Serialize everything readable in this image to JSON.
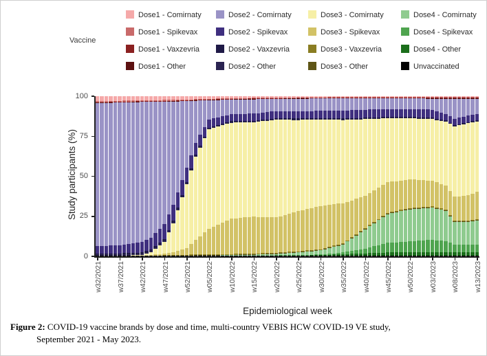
{
  "legend": {
    "title": "Vaccine",
    "columns": [
      {
        "items": [
          {
            "label": "Dose1 - Comirnaty",
            "color": "#F5A9A9"
          },
          {
            "label": "Dose1 - Spikevax",
            "color": "#C96A6A"
          },
          {
            "label": "Dose1 - Vaxzevria",
            "color": "#8B2121"
          },
          {
            "label": "Dose1 - Other",
            "color": "#5C1010"
          }
        ]
      },
      {
        "items": [
          {
            "label": "Dose2 - Comirnaty",
            "color": "#9A93C6"
          },
          {
            "label": "Dose2 - Spikevax",
            "color": "#3F2F7F"
          },
          {
            "label": "Dose2 - Vaxzevria",
            "color": "#1F1A47"
          },
          {
            "label": "Dose2 - Other",
            "color": "#2A2351"
          }
        ]
      },
      {
        "items": [
          {
            "label": "Dose3 - Comirnaty",
            "color": "#F6EFA6"
          },
          {
            "label": "Dose3 - Spikevax",
            "color": "#D2C266"
          },
          {
            "label": "Dose3 - Vaxzevria",
            "color": "#8A7D22"
          },
          {
            "label": "Dose3 - Other",
            "color": "#5E5516"
          }
        ]
      },
      {
        "items": [
          {
            "label": "Dose4 - Comirnaty",
            "color": "#8FCB8F"
          },
          {
            "label": "Dose4 - Spikevax",
            "color": "#4FA44F"
          },
          {
            "label": "Dose4 - Other",
            "color": "#1B6E1B"
          },
          {
            "label": "Unvaccinated",
            "color": "#000000"
          }
        ]
      }
    ]
  },
  "chart_data": {
    "type": "bar",
    "stacked": true,
    "orientation": "vertical",
    "title": "",
    "xlabel": "Epidemiological week",
    "ylabel": "Study participants (%)",
    "ylim": [
      0,
      100
    ],
    "y_ticks": [
      0,
      25,
      50,
      75,
      100
    ],
    "grid": false,
    "legend_position": "top",
    "n_bars": 86,
    "x_tick_labels": [
      "w32/2021",
      "w37/2021",
      "w42/2021",
      "w47/2021",
      "w52/2021",
      "w05/2022",
      "w10/2022",
      "w15/2022",
      "w20/2022",
      "w25/2022",
      "w30/2022",
      "w35/2022",
      "w40/2022",
      "w45/2022",
      "w50/2022",
      "w03/2023",
      "w08/2023",
      "w13/2023"
    ],
    "x_tick_bar_indices": [
      0,
      5,
      10,
      15,
      20,
      25,
      30,
      35,
      40,
      45,
      50,
      55,
      60,
      65,
      70,
      75,
      80,
      85
    ],
    "anchor_bar_indices": [
      0,
      5,
      10,
      12,
      15,
      17,
      20,
      22,
      25,
      30,
      35,
      40,
      45,
      50,
      55,
      60,
      65,
      70,
      75,
      78,
      80,
      83,
      85
    ],
    "stack_order_note": "series listed bottom-to-top; values are % of study participants at anchor weeks",
    "series": [
      {
        "name": "Unvaccinated",
        "color": "#000000",
        "values": [
          0.4,
          0.4,
          0.4,
          0.4,
          0.4,
          0.4,
          0.4,
          0.4,
          0.4,
          0.4,
          0.4,
          0.4,
          0.4,
          0.4,
          0.4,
          0.4,
          0.4,
          0.4,
          0.4,
          0.4,
          0.4,
          0.4,
          0.4
        ]
      },
      {
        "name": "Dose4 - Other",
        "color": "#1B6E1B",
        "values": [
          0,
          0,
          0,
          0,
          0,
          0,
          0,
          0,
          0,
          0,
          0,
          0.1,
          0.2,
          0.3,
          1,
          1.5,
          2,
          2,
          2,
          2,
          2,
          2,
          2
        ]
      },
      {
        "name": "Dose4 - Spikevax",
        "color": "#4FA44F",
        "values": [
          0,
          0,
          0,
          0,
          0,
          0,
          0,
          0,
          0,
          0,
          0.1,
          0.2,
          0.3,
          0.5,
          1,
          3,
          6,
          7,
          8,
          7,
          5,
          5,
          5
        ]
      },
      {
        "name": "Dose4 - Comirnaty",
        "color": "#8FCB8F",
        "values": [
          0,
          0,
          0,
          0,
          0,
          0,
          0,
          0.1,
          0.2,
          0.3,
          0.5,
          0.8,
          1.5,
          2.5,
          5,
          12,
          18,
          20,
          20,
          19,
          14,
          14,
          15
        ]
      },
      {
        "name": "Dose3 - Other",
        "color": "#5E5516",
        "values": [
          0,
          0,
          0,
          0,
          0.1,
          0.1,
          0.2,
          0.2,
          0.3,
          0.3,
          0.3,
          0.3,
          0.3,
          0.3,
          0.3,
          0.3,
          0.3,
          0.3,
          0.3,
          0.3,
          0.3,
          0.3,
          0.3
        ]
      },
      {
        "name": "Dose3 - Vaxzevria",
        "color": "#8A7D22",
        "values": [
          0,
          0,
          0,
          0.1,
          0.2,
          0.3,
          0.4,
          0.5,
          0.5,
          0.5,
          0.5,
          0.5,
          0.5,
          0.5,
          0.5,
          0.5,
          0.5,
          0.5,
          0.5,
          0.5,
          0.5,
          0.5,
          0.5
        ]
      },
      {
        "name": "Dose3 - Spikevax",
        "color": "#D2C266",
        "values": [
          0,
          0,
          0,
          0.3,
          1,
          2,
          4,
          9,
          16,
          22,
          23,
          22,
          25,
          27,
          25,
          20,
          19,
          18,
          16,
          15,
          15,
          16,
          17
        ]
      },
      {
        "name": "Dose3 - Comirnaty",
        "color": "#F6EFA6",
        "values": [
          0,
          0,
          0.5,
          2,
          7.5,
          18,
          40,
          52,
          62,
          60,
          59,
          61,
          57,
          54,
          52,
          48,
          40,
          38,
          38.5,
          40,
          44,
          45,
          44
        ]
      },
      {
        "name": "Dose2 - Other",
        "color": "#2A2351",
        "values": [
          0.7,
          0.7,
          0.7,
          0.7,
          0.7,
          0.7,
          0.6,
          0.6,
          0.5,
          0.4,
          0.4,
          0.4,
          0.4,
          0.4,
          0.4,
          0.4,
          0.4,
          0.4,
          0.4,
          0.3,
          0.3,
          0.3,
          0.3
        ]
      },
      {
        "name": "Dose2 - Vaxzevria",
        "color": "#1F1A47",
        "values": [
          0.8,
          0.8,
          0.8,
          0.8,
          0.8,
          0.8,
          0.7,
          0.7,
          0.6,
          0.5,
          0.5,
          0.5,
          0.5,
          0.5,
          0.5,
          0.5,
          0.5,
          0.5,
          0.5,
          0.4,
          0.4,
          0.4,
          0.4
        ]
      },
      {
        "name": "Dose2 - Spikevax",
        "color": "#3F2F7F",
        "values": [
          4.5,
          5,
          6.5,
          7.5,
          9.5,
          10,
          9,
          7.5,
          5,
          4.5,
          4.5,
          4.5,
          4.5,
          4.5,
          5,
          5,
          5,
          5,
          5,
          4,
          4,
          4,
          4
        ]
      },
      {
        "name": "Dose2 - Comirnaty",
        "color": "#9A93C6",
        "values": [
          89.4,
          89.1,
          87.5,
          84.7,
          76.4,
          64.4,
          41.7,
          26.2,
          12,
          9,
          8.9,
          7.6,
          7.9,
          7.7,
          7.6,
          7.1,
          6.6,
          6.6,
          6.9,
          9.6,
          12.6,
          10.6,
          9.6
        ]
      },
      {
        "name": "Dose1 - Other",
        "color": "#5C1010",
        "values": [
          0.2,
          0.2,
          0.2,
          0.2,
          0.2,
          0.2,
          0.2,
          0.2,
          0.2,
          0.2,
          0.2,
          0.2,
          0.2,
          0.2,
          0.2,
          0.2,
          0.2,
          0.2,
          0.3,
          0.3,
          0.3,
          0.3,
          0.3
        ]
      },
      {
        "name": "Dose1 - Vaxzevria",
        "color": "#8B2121",
        "values": [
          0.3,
          0.3,
          0.3,
          0.3,
          0.3,
          0.3,
          0.3,
          0.3,
          0.3,
          0.3,
          0.3,
          0.3,
          0.3,
          0.3,
          0.3,
          0.3,
          0.3,
          0.3,
          0.4,
          0.4,
          0.4,
          0.4,
          0.4
        ]
      },
      {
        "name": "Dose1 - Spikevax",
        "color": "#C96A6A",
        "values": [
          0.7,
          0.7,
          0.6,
          0.6,
          0.6,
          0.6,
          0.5,
          0.5,
          0.5,
          0.4,
          0.4,
          0.4,
          0.3,
          0.3,
          0.3,
          0.3,
          0.3,
          0.3,
          0.3,
          0.3,
          0.3,
          0.3,
          0.3
        ]
      },
      {
        "name": "Dose1 - Comirnaty",
        "color": "#F5A9A9",
        "values": [
          3,
          2.8,
          2.5,
          2.4,
          2.3,
          2.2,
          2,
          1.8,
          1.5,
          1.2,
          1,
          0.8,
          0.7,
          0.6,
          0.5,
          0.5,
          0.5,
          0.5,
          0.5,
          0.5,
          0.5,
          0.5,
          0.5
        ]
      }
    ]
  },
  "caption": {
    "prefix": "Figure 2:",
    "text": " COVID-19 vaccine brands by dose and time, multi-country VEBIS HCW COVID-19 VE study,",
    "line2": "September 2021 - May 2023."
  }
}
